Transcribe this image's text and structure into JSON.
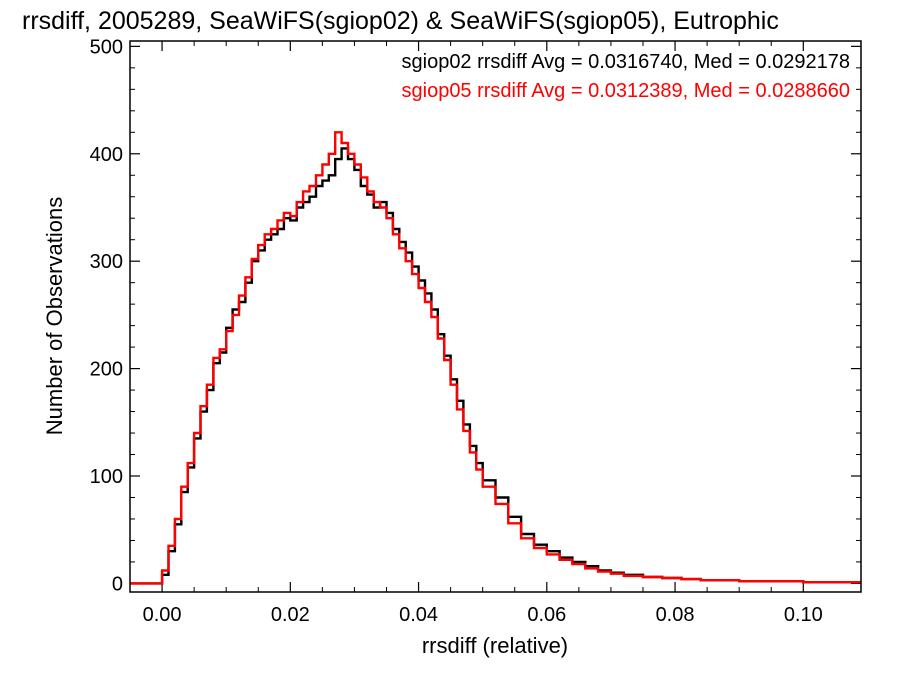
{
  "chart_data": {
    "type": "line",
    "style": "step-histogram",
    "title": "rrsdiff, 2005289, SeaWiFS(sgiop02) & SeaWiFS(sgiop05), Eutrophic",
    "xlabel": "rrsdiff (relative)",
    "ylabel": "Number of Observations",
    "xlim": [
      -0.005,
      0.109
    ],
    "ylim": [
      -8,
      505
    ],
    "x_ticks": [
      0.0,
      0.02,
      0.04,
      0.06,
      0.08,
      0.1
    ],
    "x_tick_labels": [
      "0.00",
      "0.02",
      "0.04",
      "0.06",
      "0.08",
      "0.10"
    ],
    "y_ticks": [
      0,
      100,
      200,
      300,
      400,
      500
    ],
    "y_tick_labels": [
      "0",
      "100",
      "200",
      "300",
      "400",
      "500"
    ],
    "grid": false,
    "legend_position": "top-right",
    "series": [
      {
        "color": "#000000",
        "legend_text": "sgiop02 rrsdiff Avg = 0.0316740, Med = 0.0292178",
        "x": [
          -0.005,
          -0.0005,
          0.0,
          0.001,
          0.002,
          0.003,
          0.004,
          0.005,
          0.006,
          0.007,
          0.008,
          0.009,
          0.01,
          0.011,
          0.012,
          0.013,
          0.014,
          0.015,
          0.016,
          0.017,
          0.018,
          0.019,
          0.02,
          0.021,
          0.022,
          0.023,
          0.024,
          0.025,
          0.026,
          0.027,
          0.028,
          0.029,
          0.03,
          0.031,
          0.032,
          0.033,
          0.034,
          0.035,
          0.036,
          0.037,
          0.038,
          0.039,
          0.04,
          0.041,
          0.042,
          0.043,
          0.044,
          0.045,
          0.046,
          0.047,
          0.048,
          0.049,
          0.05,
          0.052,
          0.054,
          0.056,
          0.058,
          0.06,
          0.062,
          0.064,
          0.066,
          0.068,
          0.07,
          0.072,
          0.075,
          0.078,
          0.081,
          0.084,
          0.087,
          0.09,
          0.093,
          0.096,
          0.1,
          0.104,
          0.109
        ],
        "values": [
          0,
          0,
          8,
          30,
          55,
          85,
          108,
          135,
          160,
          180,
          205,
          215,
          238,
          255,
          262,
          280,
          300,
          310,
          320,
          325,
          330,
          340,
          338,
          350,
          355,
          360,
          370,
          375,
          380,
          395,
          405,
          395,
          385,
          370,
          362,
          350,
          355,
          345,
          330,
          318,
          308,
          295,
          282,
          270,
          255,
          232,
          212,
          190,
          170,
          148,
          128,
          112,
          96,
          80,
          62,
          46,
          36,
          30,
          24,
          20,
          16,
          12,
          10,
          8,
          6,
          5,
          4,
          3,
          3,
          2,
          2,
          2,
          1,
          1,
          1
        ]
      },
      {
        "color": "#ff0000",
        "legend_text": "sgiop05 rrsdiff Avg = 0.0312389, Med = 0.0288660",
        "x": [
          -0.005,
          -0.0005,
          0.0,
          0.001,
          0.002,
          0.003,
          0.004,
          0.005,
          0.006,
          0.007,
          0.008,
          0.009,
          0.01,
          0.011,
          0.012,
          0.013,
          0.014,
          0.015,
          0.016,
          0.017,
          0.018,
          0.019,
          0.02,
          0.021,
          0.022,
          0.023,
          0.024,
          0.025,
          0.026,
          0.027,
          0.028,
          0.029,
          0.03,
          0.031,
          0.032,
          0.033,
          0.034,
          0.035,
          0.036,
          0.037,
          0.038,
          0.039,
          0.04,
          0.041,
          0.042,
          0.043,
          0.044,
          0.045,
          0.046,
          0.047,
          0.048,
          0.049,
          0.05,
          0.052,
          0.054,
          0.056,
          0.058,
          0.06,
          0.062,
          0.064,
          0.066,
          0.068,
          0.07,
          0.072,
          0.075,
          0.078,
          0.081,
          0.084,
          0.087,
          0.09,
          0.093,
          0.096,
          0.1,
          0.104,
          0.109
        ],
        "values": [
          0,
          0,
          12,
          35,
          60,
          90,
          112,
          140,
          165,
          185,
          210,
          218,
          235,
          250,
          268,
          285,
          302,
          315,
          325,
          330,
          338,
          345,
          342,
          355,
          365,
          370,
          380,
          390,
          400,
          420,
          410,
          400,
          390,
          378,
          365,
          355,
          350,
          340,
          325,
          312,
          300,
          288,
          275,
          262,
          248,
          228,
          208,
          185,
          162,
          142,
          122,
          106,
          90,
          74,
          56,
          42,
          33,
          27,
          22,
          18,
          14,
          11,
          9,
          7,
          6,
          5,
          4,
          3,
          3,
          2,
          2,
          2,
          1,
          1,
          1
        ]
      }
    ]
  }
}
